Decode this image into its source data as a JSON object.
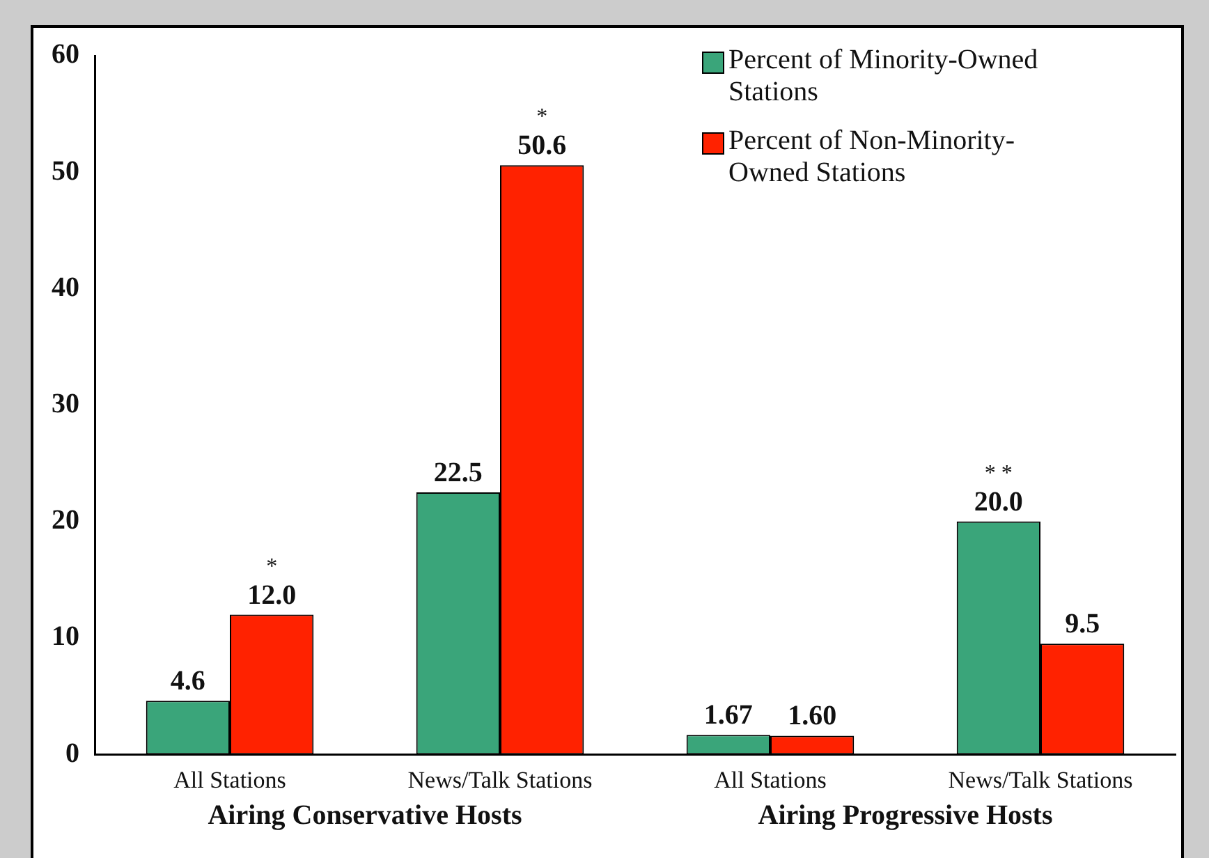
{
  "chart_data": {
    "type": "bar",
    "categories": [
      "All Stations",
      "News/Talk Stations",
      "All Stations",
      "News/Talk Stations"
    ],
    "series": [
      {
        "name": "Percent of Minority-Owned Stations",
        "color": "#3aa57a",
        "values": [
          4.6,
          22.5,
          1.67,
          20.0
        ],
        "value_labels": [
          "4.6",
          "22.5",
          "1.67",
          "20.0"
        ]
      },
      {
        "name": "Percent of Non-Minority-Owned Stations",
        "color": "#ff2200",
        "values": [
          12.0,
          50.6,
          1.6,
          9.5
        ],
        "value_labels": [
          "12.0",
          "50.6",
          "1.60",
          "9.5"
        ]
      }
    ],
    "annotations": [
      "Airing Conservative Hosts",
      "Airing Progressive Hosts",
      {
        "text": "*",
        "y": 12.0
      },
      {
        "text": "*",
        "y": 50.6
      },
      {
        "text": "* *",
        "y": 20.0
      }
    ],
    "ylim": [
      0,
      60
    ],
    "yticks": [
      0,
      10,
      20,
      30,
      40,
      50,
      60
    ],
    "grid": false,
    "legend": "top right"
  }
}
